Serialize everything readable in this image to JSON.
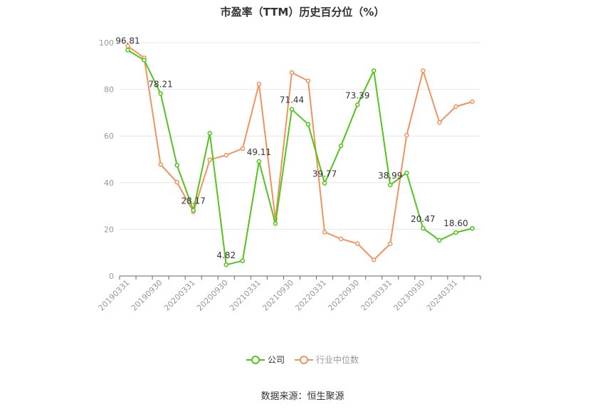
{
  "chart_data": {
    "type": "line",
    "title": "市盈率（TTM）历史百分位（%）",
    "categories": [
      "20190331",
      "20190630",
      "20190930",
      "20191231",
      "20200331",
      "20200630",
      "20200930",
      "20201231",
      "20210331",
      "20210630",
      "20210930",
      "20211231",
      "20220331",
      "20220630",
      "20220930",
      "20221231",
      "20230331",
      "20230630",
      "20230930",
      "20231231",
      "20240331",
      "20240630"
    ],
    "x_tick_labels": [
      "20190331",
      "",
      "20190930",
      "",
      "20200331",
      "",
      "20200930",
      "",
      "20210331",
      "",
      "20210930",
      "",
      "20220331",
      "",
      "20220930",
      "",
      "20230331",
      "",
      "20230930",
      "",
      "20240331",
      ""
    ],
    "y_ticks": [
      0,
      20,
      40,
      60,
      80,
      100
    ],
    "ylim": [
      0,
      100
    ],
    "grid": true,
    "legend_position": "bottom",
    "series": [
      {
        "name": "公司",
        "color": "#52c41a",
        "values": [
          96.81,
          92.5,
          78.21,
          47.5,
          28.17,
          61.2,
          4.82,
          6.5,
          49.11,
          22.5,
          71.44,
          65.0,
          39.77,
          55.8,
          73.39,
          88.0,
          38.99,
          44.2,
          20.47,
          15.3,
          18.6,
          20.4
        ],
        "data_labels": [
          "96.81",
          "",
          "78.21",
          "",
          "28.17",
          "",
          "4.82",
          "",
          "49.11",
          "",
          "71.44",
          "",
          "39.77",
          "",
          "73.39",
          "",
          "38.99",
          "",
          "20.47",
          "",
          "18.60",
          ""
        ]
      },
      {
        "name": "行业中位数",
        "color": "#f0935f",
        "values": [
          98.5,
          93.5,
          47.8,
          40.2,
          27.5,
          49.8,
          51.8,
          54.6,
          82.3,
          24.3,
          87.2,
          83.6,
          18.8,
          15.9,
          13.9,
          6.9,
          13.8,
          60.3,
          88.0,
          65.8,
          72.6,
          74.7
        ]
      }
    ]
  },
  "legend": {
    "company": "公司",
    "industry": "行业中位数"
  },
  "source_text": "数据来源：恒生聚源"
}
